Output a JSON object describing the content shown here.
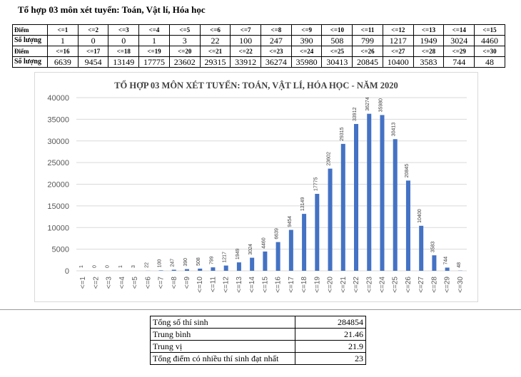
{
  "heading": "Tổ hợp 03 môn xét tuyển: Toán, Vật lí, Hóa học",
  "table": {
    "row_label_score": "Điểm",
    "row_label_count": "Số lượng"
  },
  "stats": [
    {
      "label": "Tổng số thí sinh",
      "value": "284854"
    },
    {
      "label": "Trung bình",
      "value": "21.46"
    },
    {
      "label": "Trung vị",
      "value": "21.9"
    },
    {
      "label": "Tổng điểm có nhiều thí sinh đạt nhất",
      "value": "23"
    }
  ],
  "chart_data": {
    "type": "bar",
    "title": "TỔ HỢP 03 MÔN XÉT TUYỂN: TOÁN, VẬT LÍ, HÓA HỌC - NĂM 2020",
    "xlabel": "",
    "ylabel": "",
    "categories": [
      "<=1",
      "<=2",
      "<=3",
      "<=4",
      "<=5",
      "<=6",
      "<=7",
      "<=8",
      "<=9",
      "<=10",
      "<=11",
      "<=12",
      "<=13",
      "<=14",
      "<=15",
      "<=16",
      "<=17",
      "<=18",
      "<=19",
      "<=20",
      "<=21",
      "<=22",
      "<=23",
      "<=24",
      "<=25",
      "<=26",
      "<=27",
      "<=28",
      "<=29",
      "<=30"
    ],
    "values": [
      1,
      0,
      0,
      1,
      3,
      22,
      100,
      247,
      390,
      508,
      799,
      1217,
      1949,
      3024,
      4460,
      6639,
      9454,
      13149,
      17775,
      23602,
      29315,
      33912,
      36274,
      35980,
      30413,
      20845,
      10400,
      3583,
      744,
      48
    ],
    "ylim": [
      0,
      40000
    ],
    "yticks": [
      0,
      5000,
      10000,
      15000,
      20000,
      25000,
      30000,
      35000,
      40000
    ],
    "grid": true,
    "legend": "none",
    "bar_color": "#4472c4",
    "grid_color": "#d9d9d9"
  }
}
